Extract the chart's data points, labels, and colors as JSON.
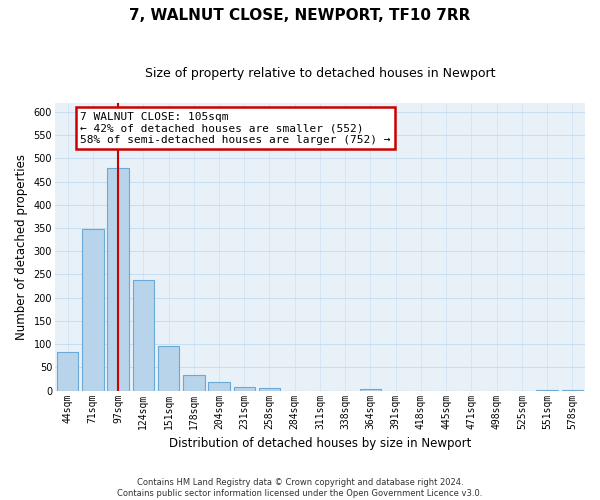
{
  "title": "7, WALNUT CLOSE, NEWPORT, TF10 7RR",
  "subtitle": "Size of property relative to detached houses in Newport",
  "xlabel": "Distribution of detached houses by size in Newport",
  "ylabel": "Number of detached properties",
  "categories": [
    "44sqm",
    "71sqm",
    "97sqm",
    "124sqm",
    "151sqm",
    "178sqm",
    "204sqm",
    "231sqm",
    "258sqm",
    "284sqm",
    "311sqm",
    "338sqm",
    "364sqm",
    "391sqm",
    "418sqm",
    "445sqm",
    "471sqm",
    "498sqm",
    "525sqm",
    "551sqm",
    "578sqm"
  ],
  "values": [
    83,
    348,
    478,
    237,
    97,
    34,
    18,
    8,
    5,
    0,
    0,
    0,
    3,
    0,
    0,
    0,
    0,
    0,
    0,
    2,
    2
  ],
  "bar_color": "#b8d4ea",
  "bar_edge_color": "#6aaad4",
  "vline_x": 2,
  "vline_color": "#cc0000",
  "annotation_title": "7 WALNUT CLOSE: 105sqm",
  "annotation_line1": "← 42% of detached houses are smaller (552)",
  "annotation_line2": "58% of semi-detached houses are larger (752) →",
  "annotation_box_color": "#ffffff",
  "annotation_box_edge": "#cc0000",
  "ylim": [
    0,
    620
  ],
  "yticks": [
    0,
    50,
    100,
    150,
    200,
    250,
    300,
    350,
    400,
    450,
    500,
    550,
    600
  ],
  "footer_line1": "Contains HM Land Registry data © Crown copyright and database right 2024.",
  "footer_line2": "Contains public sector information licensed under the Open Government Licence v3.0.",
  "title_fontsize": 11,
  "subtitle_fontsize": 9,
  "axis_label_fontsize": 8.5,
  "tick_fontsize": 7,
  "bg_color": "#ffffff",
  "grid_color": "#c8ddf0",
  "plot_bg_color": "#e8f0f8"
}
